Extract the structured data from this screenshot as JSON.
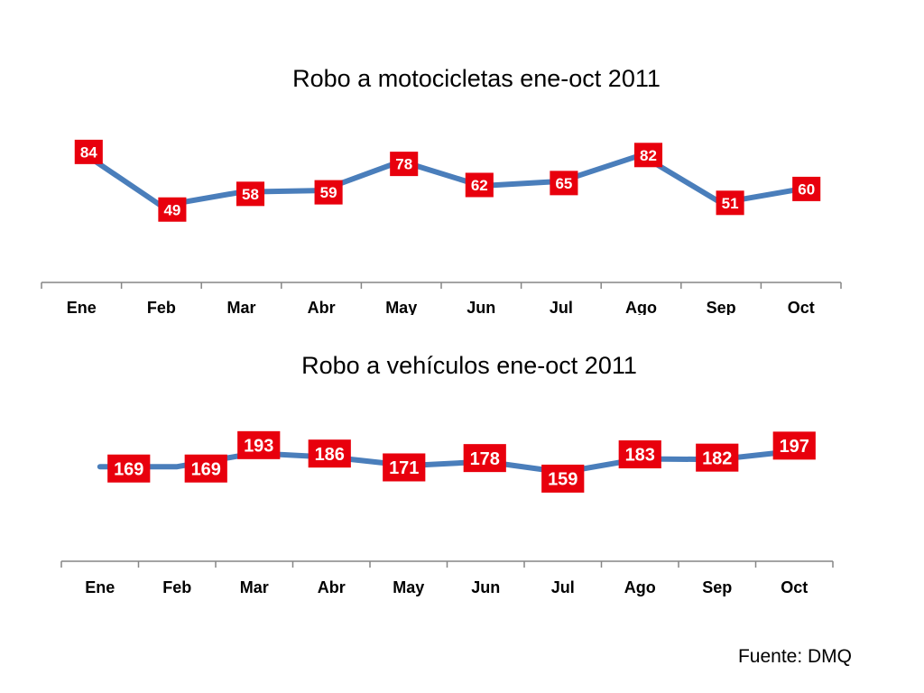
{
  "chart_data": [
    {
      "type": "line",
      "title": "Robo a motocicletas ene-oct 2011",
      "categories": [
        "Ene",
        "Feb",
        "Mar",
        "Abr",
        "May",
        "Jun",
        "Jul",
        "Ago",
        "Sep",
        "Oct"
      ],
      "values": [
        84,
        49,
        58,
        59,
        78,
        62,
        65,
        82,
        51,
        60
      ],
      "ylim": [
        0,
        110
      ],
      "grid": false,
      "colors": {
        "line": "#4a7ebb",
        "label_box": "#e8000d"
      }
    },
    {
      "type": "line",
      "title": "Robo a vehículos ene-oct 2011",
      "categories": [
        "Ene",
        "Feb",
        "Mar",
        "Abr",
        "May",
        "Jun",
        "Jul",
        "Ago",
        "Sep",
        "Oct"
      ],
      "values": [
        169,
        169,
        193,
        186,
        171,
        178,
        159,
        183,
        182,
        197
      ],
      "ylim": [
        0,
        280
      ],
      "grid": false,
      "colors": {
        "line": "#4a7ebb",
        "label_box": "#e8000d"
      }
    }
  ],
  "footer": {
    "source": "Fuente: DMQ"
  }
}
